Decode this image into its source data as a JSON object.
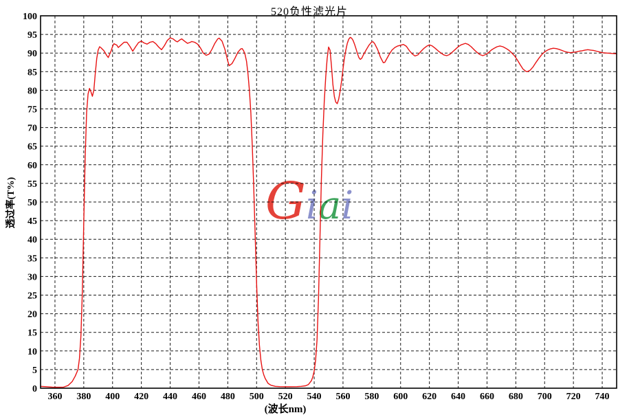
{
  "title": "520负性滤光片",
  "axes": {
    "x_label": "(波长nm)",
    "y_label": "透过率(T%)"
  },
  "watermark": {
    "text": "Giai",
    "letters": [
      {
        "char": "G",
        "color": "#e23229",
        "size": 74
      },
      {
        "char": "i",
        "color": "#8288c8",
        "size": 56
      },
      {
        "char": "a",
        "color": "#2f9e50",
        "size": 56
      },
      {
        "char": "i",
        "color": "#8288c8",
        "size": 56
      }
    ]
  },
  "colors": {
    "curve": "#e81212",
    "grid": "#000000",
    "border": "#000000",
    "background": "#ffffff"
  },
  "chart_data": {
    "type": "line",
    "title": "520负性滤光片",
    "xlabel": "(波长nm)",
    "ylabel": "透过率(T%)",
    "xlim": [
      350,
      750
    ],
    "ylim": [
      0,
      100
    ],
    "x_ticks": [
      360,
      380,
      400,
      420,
      440,
      460,
      480,
      500,
      520,
      540,
      560,
      580,
      600,
      620,
      640,
      660,
      680,
      700,
      720,
      740
    ],
    "y_ticks": [
      0,
      5,
      10,
      15,
      20,
      25,
      30,
      35,
      40,
      45,
      50,
      55,
      60,
      65,
      70,
      75,
      80,
      85,
      90,
      95,
      100
    ],
    "grid": true,
    "legend": "none",
    "series": [
      {
        "name": "transmittance",
        "color": "#e81212",
        "points": [
          [
            350,
            0.5
          ],
          [
            354,
            0.4
          ],
          [
            358,
            0.3
          ],
          [
            362,
            0.25
          ],
          [
            366,
            0.3
          ],
          [
            369,
            0.7
          ],
          [
            372,
            1.8
          ],
          [
            374,
            3.2
          ],
          [
            376,
            5
          ],
          [
            377,
            8
          ],
          [
            378,
            14
          ],
          [
            379,
            26
          ],
          [
            380,
            44
          ],
          [
            381,
            62
          ],
          [
            382,
            74
          ],
          [
            383,
            79
          ],
          [
            384,
            80.5
          ],
          [
            385,
            79.6
          ],
          [
            386,
            78.4
          ],
          [
            387,
            80
          ],
          [
            388,
            84.5
          ],
          [
            389,
            88.5
          ],
          [
            390,
            90.8
          ],
          [
            391,
            91.7
          ],
          [
            392,
            91.4
          ],
          [
            394,
            90.6
          ],
          [
            396,
            89.3
          ],
          [
            397,
            88.8
          ],
          [
            399,
            90.6
          ],
          [
            400,
            91.8
          ],
          [
            401,
            92.5
          ],
          [
            403,
            92.1
          ],
          [
            404,
            91.5
          ],
          [
            406,
            92.2
          ],
          [
            408,
            92.9
          ],
          [
            410,
            92.9
          ],
          [
            412,
            91.8
          ],
          [
            414,
            90.5
          ],
          [
            416,
            91.7
          ],
          [
            418,
            92.8
          ],
          [
            420,
            93.2
          ],
          [
            422,
            92.7
          ],
          [
            424,
            92.4
          ],
          [
            426,
            92.9
          ],
          [
            428,
            93.1
          ],
          [
            430,
            92.5
          ],
          [
            432,
            91.6
          ],
          [
            434,
            90.9
          ],
          [
            436,
            92
          ],
          [
            438,
            93.4
          ],
          [
            440,
            94.1
          ],
          [
            442,
            93.8
          ],
          [
            444,
            93.2
          ],
          [
            445,
            93
          ],
          [
            447,
            93.6
          ],
          [
            448,
            93.8
          ],
          [
            450,
            93.2
          ],
          [
            452,
            92.6
          ],
          [
            454,
            92.9
          ],
          [
            455,
            93.1
          ],
          [
            457,
            92.9
          ],
          [
            459,
            92.4
          ],
          [
            461,
            91.4
          ],
          [
            463,
            90
          ],
          [
            465,
            89.4
          ],
          [
            467,
            89.7
          ],
          [
            469,
            91
          ],
          [
            471,
            92.6
          ],
          [
            473,
            93.8
          ],
          [
            474,
            94
          ],
          [
            476,
            93.2
          ],
          [
            478,
            91
          ],
          [
            480,
            87.8
          ],
          [
            481,
            86.6
          ],
          [
            483,
            87.2
          ],
          [
            485,
            88.6
          ],
          [
            487,
            90.2
          ],
          [
            489,
            91.1
          ],
          [
            490,
            91.2
          ],
          [
            491,
            90.6
          ],
          [
            492,
            89.6
          ],
          [
            493,
            87.8
          ],
          [
            494,
            84.5
          ],
          [
            495,
            80
          ],
          [
            496,
            74
          ],
          [
            497,
            65
          ],
          [
            498,
            54
          ],
          [
            499,
            41
          ],
          [
            500,
            28
          ],
          [
            501,
            18
          ],
          [
            502,
            11.5
          ],
          [
            503,
            7.5
          ],
          [
            504,
            5
          ],
          [
            505,
            3.6
          ],
          [
            506,
            2.6
          ],
          [
            508,
            1.3
          ],
          [
            510,
            0.8
          ],
          [
            513,
            0.5
          ],
          [
            516,
            0.42
          ],
          [
            520,
            0.4
          ],
          [
            524,
            0.4
          ],
          [
            528,
            0.42
          ],
          [
            531,
            0.5
          ],
          [
            534,
            0.65
          ],
          [
            536,
            1
          ],
          [
            538,
            2
          ],
          [
            539,
            3
          ],
          [
            540,
            4.6
          ],
          [
            541,
            7.5
          ],
          [
            542,
            13
          ],
          [
            543,
            24
          ],
          [
            544,
            40
          ],
          [
            545,
            56
          ],
          [
            546,
            68
          ],
          [
            547,
            77
          ],
          [
            548,
            83.5
          ],
          [
            549,
            88.5
          ],
          [
            550,
            91.6
          ],
          [
            551,
            90.8
          ],
          [
            552,
            86.5
          ],
          [
            553,
            81.5
          ],
          [
            554,
            78.3
          ],
          [
            555,
            76.8
          ],
          [
            556,
            76.4
          ],
          [
            557,
            77.6
          ],
          [
            558,
            79.8
          ],
          [
            559,
            82.5
          ],
          [
            560,
            85.8
          ],
          [
            561,
            88.6
          ],
          [
            562,
            90.8
          ],
          [
            563,
            92.6
          ],
          [
            564,
            93.7
          ],
          [
            565,
            94.2
          ],
          [
            566,
            94
          ],
          [
            567,
            93.4
          ],
          [
            568,
            92.4
          ],
          [
            569,
            91.2
          ],
          [
            570,
            89.9
          ],
          [
            571,
            88.8
          ],
          [
            572,
            88.3
          ],
          [
            573,
            88.6
          ],
          [
            574,
            89.4
          ],
          [
            576,
            90.8
          ],
          [
            578,
            92.1
          ],
          [
            580,
            93
          ],
          [
            581,
            93
          ],
          [
            582,
            92.5
          ],
          [
            584,
            91
          ],
          [
            586,
            88.9
          ],
          [
            588,
            87.4
          ],
          [
            589,
            87.5
          ],
          [
            590,
            88.2
          ],
          [
            592,
            89.6
          ],
          [
            594,
            90.8
          ],
          [
            596,
            91.5
          ],
          [
            598,
            91.9
          ],
          [
            600,
            92.1
          ],
          [
            602,
            92.3
          ],
          [
            604,
            91.8
          ],
          [
            606,
            90.7
          ],
          [
            608,
            89.8
          ],
          [
            610,
            89.2
          ],
          [
            612,
            89.5
          ],
          [
            614,
            90.4
          ],
          [
            616,
            91.2
          ],
          [
            618,
            91.8
          ],
          [
            620,
            92.2
          ],
          [
            622,
            91.9
          ],
          [
            624,
            91.3
          ],
          [
            626,
            90.6
          ],
          [
            628,
            90
          ],
          [
            630,
            89.5
          ],
          [
            632,
            89.3
          ],
          [
            634,
            89.6
          ],
          [
            636,
            90.3
          ],
          [
            638,
            91
          ],
          [
            640,
            91.7
          ],
          [
            642,
            92.2
          ],
          [
            645,
            92.6
          ],
          [
            647,
            92.3
          ],
          [
            649,
            91.7
          ],
          [
            651,
            90.9
          ],
          [
            653,
            90.2
          ],
          [
            655,
            89.6
          ],
          [
            657,
            89.3
          ],
          [
            659,
            89.6
          ],
          [
            661,
            90.1
          ],
          [
            663,
            90.8
          ],
          [
            665,
            91.3
          ],
          [
            667,
            91.7
          ],
          [
            669,
            91.9
          ],
          [
            671,
            91.7
          ],
          [
            673,
            91.3
          ],
          [
            675,
            90.8
          ],
          [
            677,
            90.1
          ],
          [
            679,
            89.3
          ],
          [
            681,
            88.2
          ],
          [
            683,
            86.9
          ],
          [
            685,
            85.7
          ],
          [
            687,
            85.1
          ],
          [
            688,
            85
          ],
          [
            690,
            85.4
          ],
          [
            692,
            86.3
          ],
          [
            694,
            87.5
          ],
          [
            696,
            88.6
          ],
          [
            698,
            89.6
          ],
          [
            700,
            90.3
          ],
          [
            702,
            90.8
          ],
          [
            704,
            91.1
          ],
          [
            706,
            91.3
          ],
          [
            708,
            91.2
          ],
          [
            710,
            91
          ],
          [
            712,
            90.7
          ],
          [
            714,
            90.4
          ],
          [
            716,
            90.2
          ],
          [
            718,
            90.1
          ],
          [
            720,
            90.2
          ],
          [
            722,
            90.3
          ],
          [
            724,
            90.5
          ],
          [
            726,
            90.6
          ],
          [
            728,
            90.8
          ],
          [
            730,
            90.9
          ],
          [
            732,
            90.8
          ],
          [
            734,
            90.7
          ],
          [
            736,
            90.5
          ],
          [
            738,
            90.3
          ],
          [
            740,
            90.1
          ],
          [
            743,
            90
          ],
          [
            746,
            89.9
          ],
          [
            750,
            89.8
          ]
        ]
      }
    ]
  }
}
